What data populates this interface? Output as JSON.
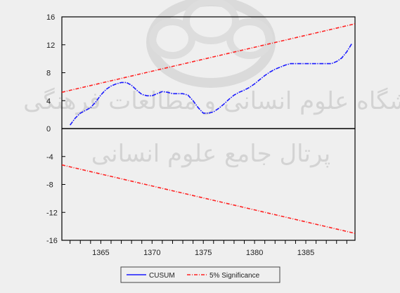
{
  "chart_data": {
    "type": "line",
    "title": "",
    "xlabel": "",
    "ylabel": "",
    "xlim": [
      1361.2,
      1389.8
    ],
    "ylim": [
      -16,
      16
    ],
    "x_ticks": [
      1365,
      1370,
      1375,
      1380,
      1385
    ],
    "x_tick_labels": [
      "1365",
      "1370",
      "1375",
      "1380",
      "1385"
    ],
    "y_ticks": [
      16,
      12,
      8,
      4,
      0,
      -4,
      -8,
      -12,
      -16
    ],
    "y_tick_labels": [
      "16",
      "12",
      "8",
      "4",
      "0",
      "-4",
      "-8",
      "-12",
      "-16"
    ],
    "zero_line": true,
    "grid": false,
    "legend_position": "bottom",
    "series": [
      {
        "name": "CUSUM",
        "color": "#1a1aff",
        "style": "dash-dot",
        "x": [
          1362,
          1362.5,
          1363,
          1363.5,
          1364,
          1364.5,
          1365,
          1365.5,
          1366,
          1366.5,
          1367,
          1367.5,
          1368,
          1368.5,
          1369,
          1369.5,
          1370,
          1370.5,
          1371,
          1371.5,
          1372,
          1372.5,
          1373,
          1373.5,
          1374,
          1374.5,
          1375,
          1375.5,
          1376,
          1376.5,
          1377,
          1377.5,
          1378,
          1378.5,
          1379,
          1379.5,
          1380,
          1380.5,
          1381,
          1381.5,
          1382,
          1382.5,
          1383,
          1383.5,
          1384,
          1384.5,
          1385,
          1385.5,
          1386,
          1386.5,
          1387,
          1387.5,
          1388,
          1388.5,
          1389,
          1389.5
        ],
        "y": [
          0.5,
          1.5,
          2.2,
          2.6,
          3.0,
          3.8,
          4.8,
          5.6,
          6.1,
          6.4,
          6.6,
          6.6,
          6.2,
          5.5,
          4.9,
          4.7,
          4.7,
          5.0,
          5.3,
          5.2,
          5.0,
          5.0,
          5.0,
          4.8,
          4.0,
          3.0,
          2.2,
          2.2,
          2.4,
          2.9,
          3.5,
          4.2,
          4.8,
          5.2,
          5.5,
          5.9,
          6.4,
          7.0,
          7.6,
          8.1,
          8.5,
          8.8,
          9.1,
          9.3,
          9.3,
          9.3,
          9.3,
          9.3,
          9.3,
          9.3,
          9.3,
          9.3,
          9.6,
          10.1,
          11.0,
          12.2
        ]
      },
      {
        "name": "5% Significance",
        "color": "#ff2222",
        "style": "dash-dot",
        "x": [
          1361.2,
          1389.8
        ],
        "y": [
          5.2,
          15.0
        ]
      },
      {
        "name": "",
        "color": "#ff2222",
        "style": "dash-dot",
        "x": [
          1361.2,
          1389.8
        ],
        "y": [
          -5.2,
          -15.0
        ]
      }
    ],
    "legend_entries": [
      "CUSUM",
      "5% Significance"
    ]
  }
}
